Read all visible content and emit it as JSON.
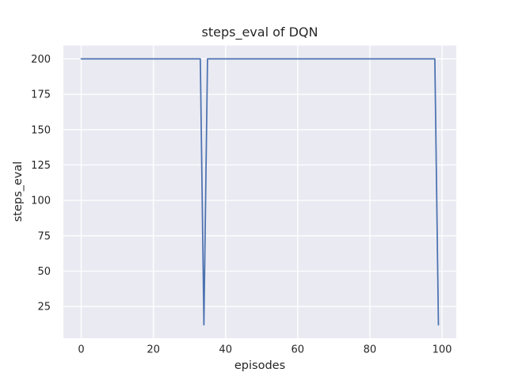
{
  "chart_data": {
    "type": "line",
    "title": "steps_eval of DQN",
    "xlabel": "episodes",
    "ylabel": "steps_eval",
    "series_name": "steps_eval",
    "x": [
      0,
      1,
      2,
      3,
      4,
      5,
      6,
      7,
      8,
      9,
      10,
      11,
      12,
      13,
      14,
      15,
      16,
      17,
      18,
      19,
      20,
      21,
      22,
      23,
      24,
      25,
      26,
      27,
      28,
      29,
      30,
      31,
      32,
      33,
      34,
      35,
      36,
      37,
      38,
      39,
      40,
      41,
      42,
      43,
      44,
      45,
      46,
      47,
      48,
      49,
      50,
      51,
      52,
      53,
      54,
      55,
      56,
      57,
      58,
      59,
      60,
      61,
      62,
      63,
      64,
      65,
      66,
      67,
      68,
      69,
      70,
      71,
      72,
      73,
      74,
      75,
      76,
      77,
      78,
      79,
      80,
      81,
      82,
      83,
      84,
      85,
      86,
      87,
      88,
      89,
      90,
      91,
      92,
      93,
      94,
      95,
      96,
      97,
      98,
      99
    ],
    "values": [
      200,
      200,
      200,
      200,
      200,
      200,
      200,
      200,
      200,
      200,
      200,
      200,
      200,
      200,
      200,
      200,
      200,
      200,
      200,
      200,
      200,
      200,
      200,
      200,
      200,
      200,
      200,
      200,
      200,
      200,
      200,
      200,
      200,
      200,
      12,
      200,
      200,
      200,
      200,
      200,
      200,
      200,
      200,
      200,
      200,
      200,
      200,
      200,
      200,
      200,
      200,
      200,
      200,
      200,
      200,
      200,
      200,
      200,
      200,
      200,
      200,
      200,
      200,
      200,
      200,
      200,
      200,
      200,
      200,
      200,
      200,
      200,
      200,
      200,
      200,
      200,
      200,
      200,
      200,
      200,
      200,
      200,
      200,
      200,
      200,
      200,
      200,
      200,
      200,
      200,
      200,
      200,
      200,
      200,
      200,
      200,
      200,
      200,
      200,
      12
    ],
    "xticks": [
      0,
      20,
      40,
      60,
      80,
      100
    ],
    "yticks": [
      25,
      50,
      75,
      100,
      125,
      150,
      175,
      200
    ],
    "xlim": [
      -4.95,
      103.95
    ],
    "ylim": [
      2.6,
      209.4
    ],
    "grid": true,
    "legend": "none",
    "line_color": "#4c72b0",
    "axes_bg": "#eaeaf2",
    "grid_color": "#ffffff",
    "text_color": "#262626"
  }
}
